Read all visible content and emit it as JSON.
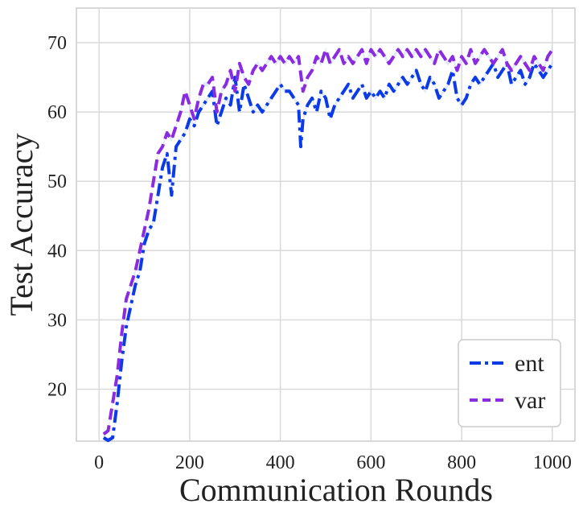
{
  "chart_data": {
    "type": "line",
    "title": "",
    "xlabel": "Communication Rounds",
    "ylabel": "Test Accuracy",
    "xlim": [
      -50,
      1050
    ],
    "ylim": [
      12.5,
      75
    ],
    "xticks": [
      0,
      200,
      400,
      600,
      800,
      1000
    ],
    "yticks": [
      20,
      30,
      40,
      50,
      60,
      70
    ],
    "grid": true,
    "legend_position": "bottom-right",
    "series": [
      {
        "name": "ent",
        "color": "#0b3be8",
        "dash": "dashdot",
        "x": [
          10,
          20,
          30,
          40,
          50,
          60,
          70,
          80,
          90,
          100,
          110,
          120,
          130,
          140,
          150,
          160,
          170,
          180,
          190,
          200,
          210,
          220,
          230,
          240,
          250,
          260,
          270,
          280,
          290,
          300,
          310,
          320,
          330,
          340,
          350,
          360,
          370,
          380,
          390,
          400,
          410,
          420,
          430,
          440,
          445,
          450,
          460,
          470,
          480,
          490,
          500,
          510,
          520,
          530,
          540,
          550,
          560,
          570,
          580,
          590,
          600,
          610,
          620,
          630,
          640,
          650,
          660,
          670,
          680,
          690,
          700,
          710,
          720,
          730,
          740,
          750,
          760,
          770,
          780,
          790,
          800,
          810,
          820,
          830,
          840,
          850,
          860,
          870,
          880,
          890,
          900,
          910,
          920,
          930,
          940,
          950,
          960,
          970,
          980,
          990,
          1000
        ],
        "y": [
          13,
          12.6,
          13,
          18,
          24,
          29,
          32,
          35,
          37,
          41,
          43,
          44,
          48,
          52,
          54,
          48,
          55,
          56,
          57,
          59,
          58,
          60,
          61,
          62,
          63,
          58,
          60,
          62,
          61,
          65,
          60,
          64,
          62,
          60,
          61,
          60,
          61,
          62,
          63,
          64,
          63,
          63,
          62,
          61,
          55,
          59,
          61,
          62,
          60,
          63,
          62,
          59,
          61,
          62,
          63,
          64,
          62,
          63,
          64,
          62,
          63,
          62,
          63,
          62,
          64,
          63,
          64,
          65,
          64,
          65,
          66,
          64,
          63,
          65,
          64,
          62,
          63,
          64,
          66,
          62,
          61,
          62,
          64,
          65,
          64,
          65,
          66,
          67,
          65,
          66,
          67,
          64,
          65,
          66,
          64,
          65,
          67,
          66,
          65,
          66,
          67
        ]
      },
      {
        "name": "var",
        "color": "#8a2be2",
        "dash": "dashed",
        "x": [
          10,
          20,
          30,
          40,
          50,
          60,
          70,
          80,
          90,
          100,
          110,
          120,
          130,
          140,
          150,
          160,
          170,
          180,
          190,
          200,
          210,
          220,
          230,
          240,
          250,
          260,
          270,
          280,
          290,
          300,
          310,
          320,
          330,
          340,
          350,
          360,
          370,
          380,
          390,
          400,
          410,
          420,
          430,
          440,
          450,
          460,
          470,
          480,
          490,
          500,
          510,
          520,
          530,
          540,
          550,
          560,
          570,
          580,
          590,
          600,
          610,
          620,
          630,
          640,
          650,
          660,
          670,
          680,
          690,
          700,
          710,
          720,
          730,
          740,
          750,
          760,
          770,
          780,
          790,
          800,
          810,
          820,
          830,
          840,
          850,
          860,
          870,
          880,
          890,
          900,
          910,
          920,
          930,
          940,
          950,
          960,
          970,
          980,
          990,
          1000
        ],
        "y": [
          13.5,
          14,
          18,
          22,
          28,
          33,
          35,
          37,
          40,
          43,
          46,
          50,
          54,
          55,
          57,
          56,
          58,
          60,
          63,
          61,
          59,
          62,
          64,
          64,
          65,
          60,
          63,
          64,
          66,
          63,
          67,
          65,
          64,
          66,
          67,
          66,
          67,
          68,
          67,
          68,
          67,
          68,
          67,
          68,
          63,
          65,
          66,
          68,
          67,
          69,
          67,
          68,
          69,
          67,
          68,
          67,
          68,
          69,
          67,
          69,
          68,
          69,
          68,
          67,
          68,
          69,
          68,
          69,
          68,
          69,
          68,
          69,
          68,
          67,
          69,
          68,
          67,
          68,
          66,
          68,
          67,
          69,
          67,
          68,
          69,
          68,
          67,
          68,
          69,
          67,
          66,
          67,
          68,
          67,
          66,
          68,
          67,
          66,
          68,
          69
        ]
      }
    ]
  }
}
